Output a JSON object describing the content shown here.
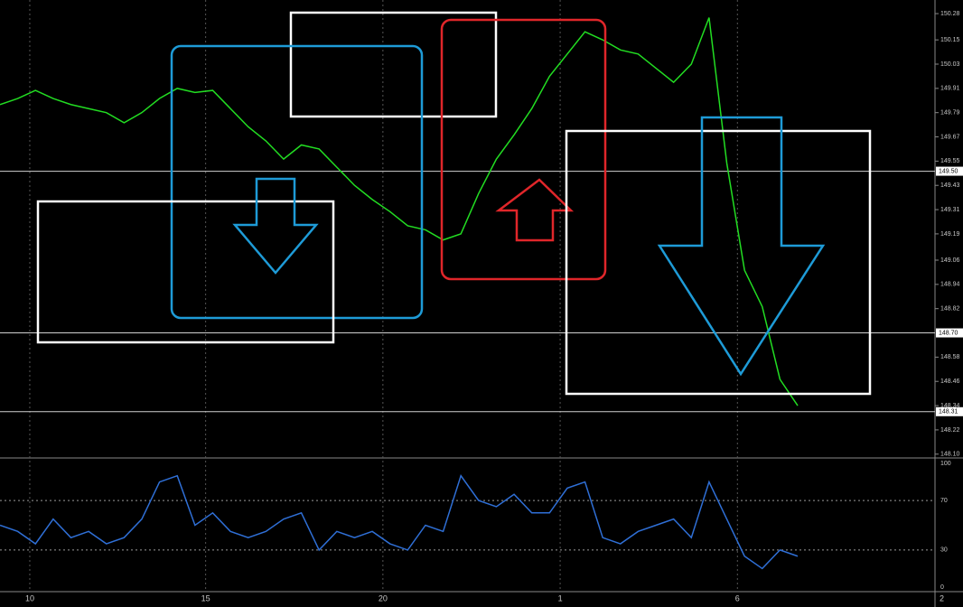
{
  "chart_data": {
    "type": "line",
    "x": [
      0,
      5,
      10,
      15,
      20,
      25,
      30,
      35,
      40,
      45,
      50,
      55,
      60,
      65,
      70,
      75,
      80,
      85,
      90,
      95,
      100,
      105,
      110,
      115,
      120,
      125,
      130,
      135,
      140,
      145,
      150,
      155,
      160,
      165,
      170,
      175,
      180,
      185,
      190,
      195,
      200,
      205,
      210,
      215,
      220,
      225
    ],
    "series": [
      {
        "color": "#22dd22",
        "values": [
          149.83,
          149.86,
          149.9,
          149.86,
          149.83,
          149.81,
          149.79,
          149.74,
          149.79,
          149.86,
          149.91,
          149.89,
          149.9,
          149.81,
          149.72,
          149.65,
          149.56,
          149.63,
          149.61,
          149.52,
          149.43,
          149.36,
          149.3,
          149.23,
          149.21,
          149.16,
          149.19,
          149.39,
          149.56,
          149.68,
          149.81,
          149.97,
          150.08,
          150.19,
          150.15,
          150.1,
          150.08,
          150.01,
          149.94,
          150.03,
          150.26,
          149.54,
          149.01,
          148.83,
          148.47,
          148.34
        ]
      }
    ],
    "xlim": [
      0,
      265
    ],
    "xticks": [
      {
        "value": 8.4,
        "label": "10"
      },
      {
        "value": 58,
        "label": "15"
      },
      {
        "value": 108,
        "label": "20"
      },
      {
        "value": 158,
        "label": "1"
      },
      {
        "value": 208,
        "label": "6"
      },
      {
        "value": 265,
        "label": "2"
      }
    ],
    "ylim": [
      148.09,
      150.325
    ],
    "yticks": [
      150.28,
      150.15,
      150.03,
      149.91,
      149.79,
      149.67,
      149.55,
      149.43,
      149.31,
      149.19,
      149.06,
      148.94,
      148.82,
      148.58,
      148.46,
      148.34,
      148.22,
      {
        "value": 148.1,
        "label": "148.10"
      }
    ],
    "price_lines": [
      {
        "value": 149.5,
        "label": "149.50"
      },
      {
        "value": 148.7,
        "label": "148.70"
      },
      {
        "value": 148.31,
        "label": "148.31"
      }
    ],
    "grid": true,
    "indicator": {
      "type": "line",
      "color": "#2f6fd6",
      "values": [
        50,
        45,
        35,
        55,
        40,
        45,
        35,
        40,
        55,
        85,
        90,
        50,
        60,
        45,
        40,
        45,
        55,
        60,
        30,
        45,
        40,
        45,
        35,
        30,
        50,
        45,
        90,
        70,
        65,
        75,
        60,
        60,
        80,
        85,
        40,
        35,
        45,
        50,
        55,
        40,
        85,
        55,
        25,
        15,
        30,
        25
      ],
      "ylim": [
        0,
        100
      ],
      "yticks": [
        100,
        70,
        30,
        0
      ]
    }
  }
}
